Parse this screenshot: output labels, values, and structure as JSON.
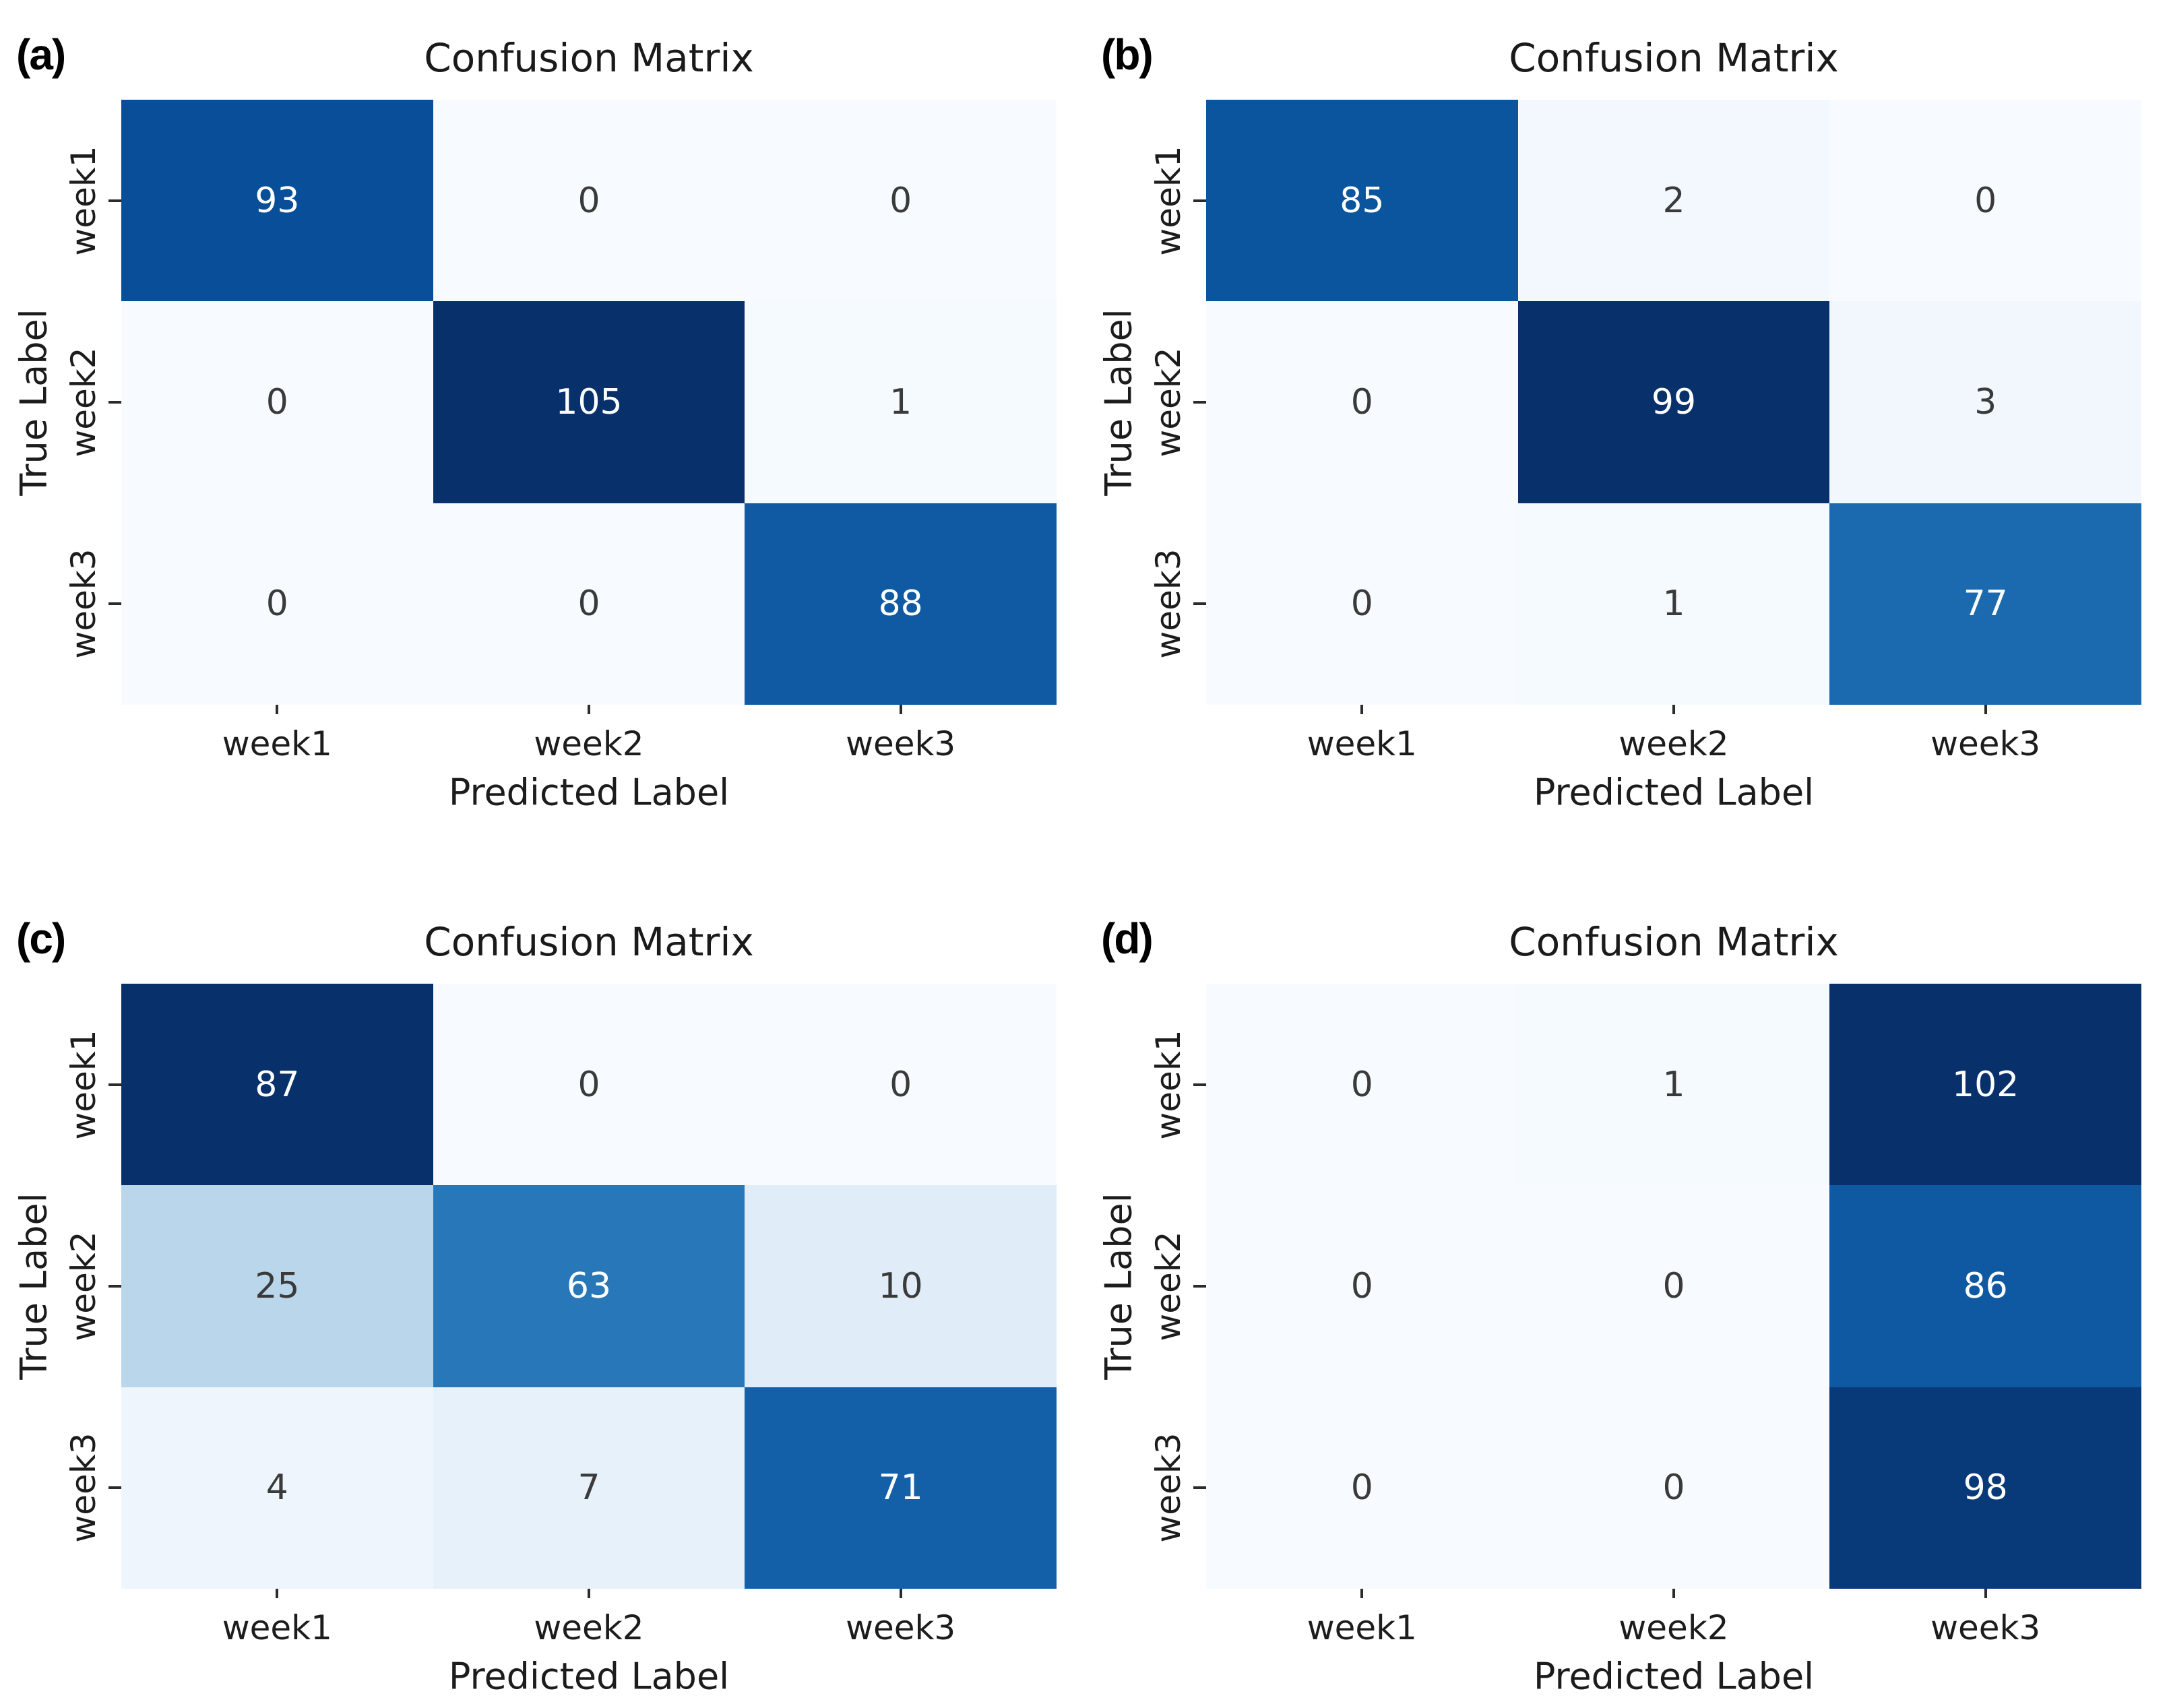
{
  "figure": {
    "background": "#ffffff",
    "colormap_name": "Blues",
    "colormap_stops": [
      "#f7fbff",
      "#deebf7",
      "#c6dbef",
      "#9ecae1",
      "#6baed6",
      "#4292c6",
      "#2171b5",
      "#08519c",
      "#08306b"
    ],
    "cell_text_light": "#ffffff",
    "cell_text_dark": "#3a3a3a",
    "tick_color": "#2b2b2b",
    "label_color": "#1c1c1c"
  },
  "chart_data": [
    {
      "type": "heatmap",
      "panel_label": "(a)",
      "title": "Confusion Matrix",
      "xlabel": "Predicted Label",
      "ylabel": "True Label",
      "x_tick_labels": [
        "week1",
        "week2",
        "week3"
      ],
      "y_tick_labels": [
        "week1",
        "week2",
        "week3"
      ],
      "rows": [
        [
          93,
          0,
          0
        ],
        [
          0,
          105,
          1
        ],
        [
          0,
          0,
          88
        ]
      ],
      "vmin": 0,
      "vmax": 105
    },
    {
      "type": "heatmap",
      "panel_label": "(b)",
      "title": "Confusion Matrix",
      "xlabel": "Predicted Label",
      "ylabel": "True Label",
      "x_tick_labels": [
        "week1",
        "week2",
        "week3"
      ],
      "y_tick_labels": [
        "week1",
        "week2",
        "week3"
      ],
      "rows": [
        [
          85,
          2,
          0
        ],
        [
          0,
          99,
          3
        ],
        [
          0,
          1,
          77
        ]
      ],
      "vmin": 0,
      "vmax": 99
    },
    {
      "type": "heatmap",
      "panel_label": "(c)",
      "title": "Confusion Matrix",
      "xlabel": "Predicted Label",
      "ylabel": "True Label",
      "x_tick_labels": [
        "week1",
        "week2",
        "week3"
      ],
      "y_tick_labels": [
        "week1",
        "week2",
        "week3"
      ],
      "rows": [
        [
          87,
          0,
          0
        ],
        [
          25,
          63,
          10
        ],
        [
          4,
          7,
          71
        ]
      ],
      "vmin": 0,
      "vmax": 87
    },
    {
      "type": "heatmap",
      "panel_label": "(d)",
      "title": "Confusion Matrix",
      "xlabel": "Predicted Label",
      "ylabel": "True Label",
      "x_tick_labels": [
        "week1",
        "week2",
        "week3"
      ],
      "y_tick_labels": [
        "week1",
        "week2",
        "week3"
      ],
      "rows": [
        [
          0,
          1,
          102
        ],
        [
          0,
          0,
          86
        ],
        [
          0,
          0,
          98
        ]
      ],
      "vmin": 0,
      "vmax": 102
    }
  ]
}
